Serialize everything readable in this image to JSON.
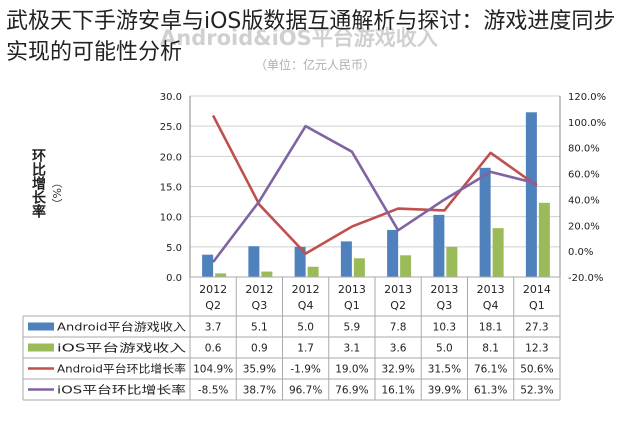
{
  "headline": "武极天下手游安卓与iOS版数据互通解析与探讨：游戏进度同步实现的可能性分析",
  "chart_data": {
    "type": "bar",
    "title": "Android&iOS平台游戏收入",
    "subtitle": "（单位：亿元人民币）",
    "ylabel": "环比增长率",
    "ylabel_unit": "（%）",
    "categories": [
      [
        "2012",
        "Q2"
      ],
      [
        "2012",
        "Q3"
      ],
      [
        "2012",
        "Q4"
      ],
      [
        "2013",
        "Q1"
      ],
      [
        "2013",
        "Q2"
      ],
      [
        "2013",
        "Q3"
      ],
      [
        "2013",
        "Q4"
      ],
      [
        "2014",
        "Q1"
      ]
    ],
    "ylim": [
      0,
      30
    ],
    "ylim_right": [
      -20,
      120
    ],
    "yticks": [
      "0.0",
      "5.0",
      "10.0",
      "15.0",
      "20.0",
      "25.0",
      "30.0"
    ],
    "yticks_right": [
      "-20.0%",
      "0.0%",
      "20.0%",
      "40.0%",
      "60.0%",
      "80.0%",
      "100.0%",
      "120.0%"
    ],
    "grid": true,
    "legend": "table-below",
    "series": [
      {
        "name": "Android平台游戏收入",
        "kind": "bar",
        "axis": "left",
        "color": "#4f81bd",
        "values": [
          3.7,
          5.1,
          5.0,
          5.9,
          7.8,
          10.3,
          18.1,
          27.3
        ],
        "labels": [
          "3.7",
          "5.1",
          "5.0",
          "5.9",
          "7.8",
          "10.3",
          "18.1",
          "27.3"
        ]
      },
      {
        "name": "iOS平台游戏收入",
        "kind": "bar",
        "axis": "left",
        "color": "#9bbb59",
        "values": [
          0.6,
          0.9,
          1.7,
          3.1,
          3.6,
          5.0,
          8.1,
          12.3
        ],
        "labels": [
          "0.6",
          "0.9",
          "1.7",
          "3.1",
          "3.6",
          "5.0",
          "8.1",
          "12.3"
        ]
      },
      {
        "name": "Android平台环比增长率",
        "kind": "line",
        "axis": "right",
        "color": "#c0504d",
        "values": [
          104.9,
          35.9,
          -1.9,
          19.0,
          32.9,
          31.5,
          76.1,
          50.6
        ],
        "labels": [
          "104.9%",
          "35.9%",
          "-1.9%",
          "19.0%",
          "32.9%",
          "31.5%",
          "76.1%",
          "50.6%"
        ]
      },
      {
        "name": "iOS平台环比增长率",
        "kind": "line",
        "axis": "right",
        "color": "#8064a2",
        "values": [
          -8.5,
          38.7,
          96.7,
          76.9,
          16.1,
          39.9,
          61.3,
          52.3
        ],
        "labels": [
          "-8.5%",
          "38.7%",
          "96.7%",
          "76.9%",
          "16.1%",
          "39.9%",
          "61.3%",
          "52.3%"
        ]
      }
    ]
  }
}
